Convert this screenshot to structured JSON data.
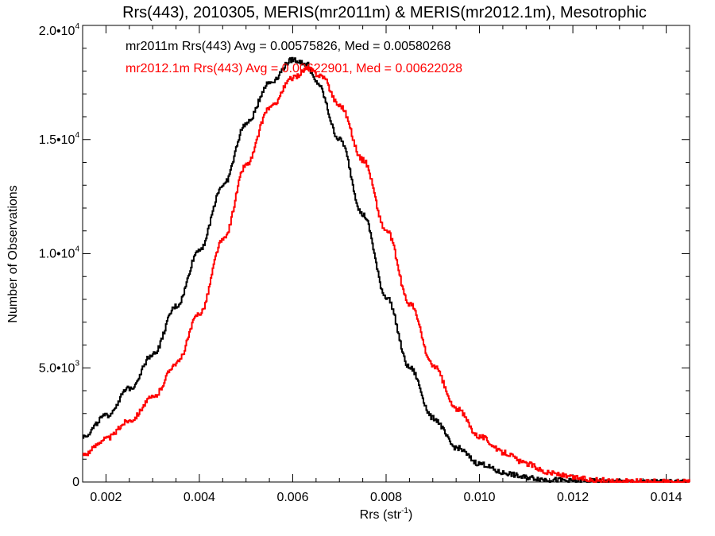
{
  "chart_data": {
    "type": "line",
    "title": "Rrs(443), 2010305, MERIS(mr2011m) & MERIS(mr2012.1m), Mesotrophic",
    "xlabel": "Rrs (str",
    "xlabel_sup": "-1",
    "xlabel_end": ")",
    "ylabel": "Number of Observations",
    "xlim": [
      0.0015,
      0.0145
    ],
    "ylim": [
      0,
      20000
    ],
    "x_ticks": [
      {
        "value": 0.002,
        "label": "0.002"
      },
      {
        "value": 0.004,
        "label": "0.004"
      },
      {
        "value": 0.006,
        "label": "0.006"
      },
      {
        "value": 0.008,
        "label": "0.008"
      },
      {
        "value": 0.01,
        "label": "0.010"
      },
      {
        "value": 0.012,
        "label": "0.012"
      },
      {
        "value": 0.014,
        "label": "0.014"
      }
    ],
    "y_ticks": [
      {
        "value": 0,
        "label": "0",
        "sup": ""
      },
      {
        "value": 5000,
        "label": "5.0•10",
        "sup": "3"
      },
      {
        "value": 10000,
        "label": "1.0•10",
        "sup": "4"
      },
      {
        "value": 15000,
        "label": "1.5•10",
        "sup": "4"
      },
      {
        "value": 20000,
        "label": "2.0•10",
        "sup": "4"
      }
    ],
    "annotations": [
      {
        "text": "mr2011m Rrs(443) Avg = 0.00575826, Med = 0.00580268",
        "color": "#000000"
      },
      {
        "text": "mr2012.1m Rrs(443) Avg = 0.00622901, Med = 0.00622028",
        "color": "#ff0000"
      }
    ],
    "series": [
      {
        "name": "mr2011m",
        "color": "#000000",
        "x": [
          0.0015,
          0.002,
          0.0025,
          0.003,
          0.0035,
          0.004,
          0.0045,
          0.005,
          0.0055,
          0.006,
          0.0063,
          0.0065,
          0.007,
          0.0075,
          0.008,
          0.0085,
          0.009,
          0.0095,
          0.01,
          0.0105,
          0.011,
          0.0115,
          0.012,
          0.013,
          0.0145
        ],
        "y": [
          2000,
          2900,
          4100,
          5600,
          7700,
          10200,
          13000,
          15700,
          17500,
          18500,
          18300,
          17500,
          15000,
          11700,
          8100,
          5000,
          2800,
          1500,
          800,
          400,
          200,
          100,
          50,
          10,
          0
        ]
      },
      {
        "name": "mr2012.1m",
        "color": "#ff0000",
        "x": [
          0.0015,
          0.002,
          0.0025,
          0.003,
          0.0035,
          0.004,
          0.0045,
          0.005,
          0.0055,
          0.006,
          0.0063,
          0.0066,
          0.007,
          0.0075,
          0.008,
          0.0085,
          0.009,
          0.0095,
          0.01,
          0.0105,
          0.011,
          0.0115,
          0.012,
          0.0125,
          0.013,
          0.0145
        ],
        "y": [
          1200,
          1900,
          2700,
          3700,
          5200,
          7400,
          10600,
          13900,
          16400,
          17700,
          18100,
          17800,
          16500,
          14100,
          11000,
          7800,
          5100,
          3200,
          2000,
          1300,
          800,
          400,
          200,
          80,
          30,
          0
        ]
      }
    ]
  }
}
